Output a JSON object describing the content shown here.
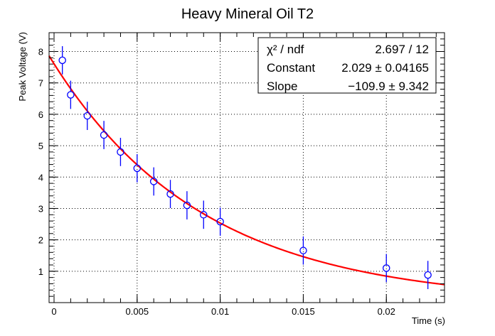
{
  "chart_data": {
    "type": "scatter",
    "title": "Heavy Mineral Oil T2",
    "xlabel": "Time (s)",
    "ylabel": "Peak Voltage (V)",
    "xlim": [
      -0.0003,
      0.0235
    ],
    "ylim": [
      0,
      8.6
    ],
    "grid": true,
    "x_ticks": [
      0,
      0.005,
      0.01,
      0.015,
      0.02
    ],
    "x_tick_labels": [
      "0",
      "0.005",
      "0.01",
      "0.015",
      "0.02"
    ],
    "y_ticks": [
      1,
      2,
      3,
      4,
      5,
      6,
      7,
      8
    ],
    "y_tick_labels": [
      "1",
      "2",
      "3",
      "4",
      "5",
      "6",
      "7",
      "8"
    ],
    "series": [
      {
        "x": [
          0.0005,
          0.001,
          0.002,
          0.003,
          0.004,
          0.005,
          0.006,
          0.007,
          0.008,
          0.009,
          0.01,
          0.015,
          0.02,
          0.0225
        ],
        "y": [
          7.72,
          6.62,
          5.95,
          5.34,
          4.8,
          4.28,
          3.86,
          3.46,
          3.1,
          2.8,
          2.58,
          1.66,
          1.1,
          0.88
        ],
        "y_err": [
          0.45,
          0.45,
          0.45,
          0.45,
          0.45,
          0.45,
          0.45,
          0.45,
          0.45,
          0.45,
          0.45,
          0.45,
          0.45,
          0.45
        ],
        "color": "#0000ff",
        "marker": "open-circle"
      }
    ],
    "fit": {
      "function": "exp(Constant + Slope*x)",
      "constant": 2.029,
      "slope": -109.9,
      "color": "#ff0000"
    },
    "stats_box": {
      "rows": [
        {
          "label": "χ² / ndf",
          "value": "2.697 / 12"
        },
        {
          "label": "Constant",
          "value": "2.029 ± 0.04165"
        },
        {
          "label": "Slope",
          "value": "−109.9 ± 9.342"
        }
      ]
    }
  }
}
